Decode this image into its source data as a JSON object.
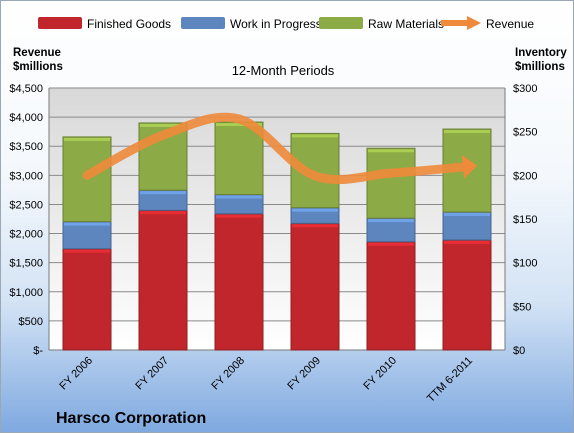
{
  "chart_data": {
    "type": "bar",
    "stacked": true,
    "subtitle": "12-Month Periods",
    "company": "Harsco Corporation",
    "left_axis": {
      "label_line1": "Revenue",
      "label_line2": "$millions",
      "ticks": [
        "$-",
        "$500",
        "$1,000",
        "$1,500",
        "$2,000",
        "$2,500",
        "$3,000",
        "$3,500",
        "$4,000",
        "$4,500"
      ],
      "ylim": [
        0,
        4500
      ]
    },
    "right_axis": {
      "label_line1": "Inventory",
      "label_line2": "$millions",
      "ticks": [
        "$0",
        "$50",
        "$100",
        "$150",
        "$200",
        "$250",
        "$300"
      ],
      "ylim": [
        0,
        300
      ]
    },
    "categories": [
      "FY 2006",
      "FY 2007",
      "FY 2008",
      "FY 2009",
      "FY 2010",
      "TTM 6-2011"
    ],
    "series": [
      {
        "name": "Finished Goods",
        "axis": "right",
        "color": "#c0262c",
        "values": [
          116,
          160,
          156,
          145,
          124,
          126
        ]
      },
      {
        "name": "Work in Progress",
        "axis": "right",
        "color": "#5d86bf",
        "values": [
          31,
          23,
          22,
          18,
          27,
          32
        ]
      },
      {
        "name": "Raw Materials",
        "axis": "right",
        "color": "#8caa45",
        "values": [
          97,
          77,
          83,
          85,
          80,
          95
        ]
      }
    ],
    "line_series": {
      "name": "Revenue",
      "axis": "left",
      "color": "#ee8a3a",
      "values": [
        3000,
        3688,
        3968,
        2990,
        3038,
        3150
      ]
    },
    "legend_position": "top",
    "grid": true
  }
}
